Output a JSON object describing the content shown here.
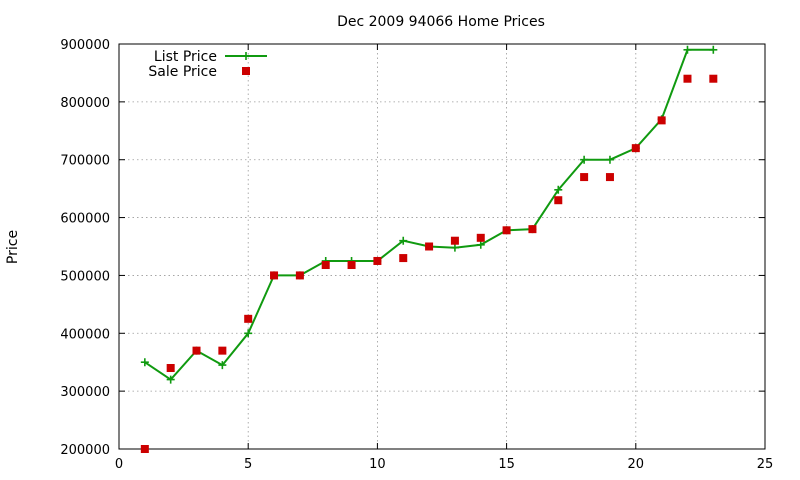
{
  "chart_data": {
    "type": "line",
    "title": "Dec 2009 94066 Home Prices",
    "xlabel": "",
    "ylabel": "Price",
    "xlim": [
      0,
      25
    ],
    "ylim": [
      200000,
      900000
    ],
    "x_ticks": [
      0,
      5,
      10,
      15,
      20,
      25
    ],
    "y_ticks": [
      200000,
      300000,
      400000,
      500000,
      600000,
      700000,
      800000,
      900000
    ],
    "grid": true,
    "legend_position": "top-left",
    "series": [
      {
        "name": "List Price",
        "style": "line-with-plus-markers",
        "color": "#109a10",
        "x": [
          1,
          2,
          3,
          4,
          5,
          6,
          7,
          8,
          9,
          10,
          11,
          12,
          13,
          14,
          15,
          16,
          17,
          18,
          19,
          20,
          21,
          22,
          23
        ],
        "y": [
          350000,
          320000,
          370000,
          345000,
          400000,
          500000,
          500000,
          525000,
          525000,
          525000,
          560000,
          550000,
          548000,
          553000,
          578000,
          580000,
          648000,
          700000,
          700000,
          720000,
          770000,
          890000,
          890000
        ]
      },
      {
        "name": "Sale Price",
        "style": "square-markers",
        "color": "#cc0000",
        "x": [
          1,
          2,
          3,
          4,
          5,
          6,
          7,
          8,
          9,
          10,
          11,
          12,
          13,
          14,
          15,
          16,
          17,
          18,
          19,
          20,
          21,
          22,
          23
        ],
        "y": [
          200000,
          340000,
          370000,
          370000,
          425000,
          500000,
          500000,
          518000,
          518000,
          525000,
          530000,
          550000,
          560000,
          565000,
          578000,
          580000,
          630000,
          670000,
          670000,
          720000,
          768000,
          840000,
          840000
        ]
      }
    ]
  }
}
